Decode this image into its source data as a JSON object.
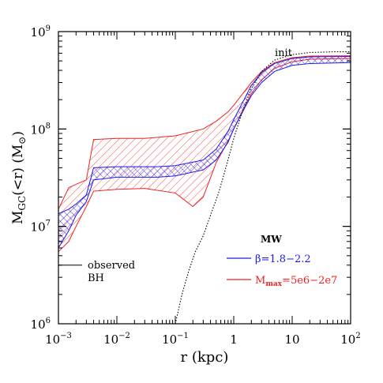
{
  "chart_data": {
    "type": "line",
    "title": "",
    "xlabel": "r (kpc)",
    "ylabel": "M_GC(<r) (M_⊙)",
    "xscale": "log",
    "yscale": "log",
    "xlim": [
      0.001,
      100
    ],
    "ylim": [
      1000000,
      1000000000
    ],
    "grid": false,
    "x_ticks": [
      {
        "value": 0.001,
        "base": "10",
        "exp": "−3"
      },
      {
        "value": 0.01,
        "base": "10",
        "exp": "−2"
      },
      {
        "value": 0.1,
        "base": "10",
        "exp": "−1"
      },
      {
        "value": 1,
        "base": "1",
        "exp": ""
      },
      {
        "value": 10,
        "base": "10",
        "exp": ""
      },
      {
        "value": 100,
        "base": "10",
        "exp": "2"
      }
    ],
    "y_ticks": [
      {
        "value": 1000000,
        "base": "10",
        "exp": "6"
      },
      {
        "value": 10000000,
        "base": "10",
        "exp": "7"
      },
      {
        "value": 100000000,
        "base": "10",
        "exp": "8"
      },
      {
        "value": 1000000000,
        "base": "10",
        "exp": "9"
      }
    ],
    "colors": {
      "blue": "#1a1aee",
      "red": "#ee2222",
      "black": "#000000"
    },
    "legend": {
      "title": "MW",
      "placement": "bottom-right",
      "entries": [
        {
          "label": "β=1.8−2.2",
          "color": "#1a1aee"
        },
        {
          "label_main": "M",
          "label_sub": "max",
          "label_rest": "=5e6−2e7",
          "color": "#ee2222"
        }
      ]
    },
    "annotations": {
      "init": "init",
      "observed_line1": "observed",
      "observed_line2": "BH",
      "observed_bh_mass": 4000000
    },
    "series": [
      {
        "name": "init",
        "style": "dotted",
        "color": "#000000",
        "points": [
          [
            0.1,
            1000000
          ],
          [
            0.13,
            2000000
          ],
          [
            0.17,
            3500000
          ],
          [
            0.22,
            5500000
          ],
          [
            0.3,
            8000000
          ],
          [
            0.4,
            13000000
          ],
          [
            0.55,
            22000000
          ],
          [
            0.75,
            42000000
          ],
          [
            1.0,
            80000000
          ],
          [
            1.4,
            150000000
          ],
          [
            2.0,
            260000000
          ],
          [
            3.0,
            390000000
          ],
          [
            5.0,
            510000000
          ],
          [
            10,
            580000000
          ],
          [
            20,
            610000000
          ],
          [
            50,
            620000000
          ],
          [
            100,
            620000000
          ]
        ]
      }
    ],
    "bands": [
      {
        "name": "β=1.8−2.2",
        "color": "#1a1aee",
        "hatch": "cross",
        "upper": [
          [
            0.001,
            13500000
          ],
          [
            0.0015,
            15000000
          ],
          [
            0.002,
            17000000
          ],
          [
            0.003,
            21000000
          ],
          [
            0.004,
            40000000
          ],
          [
            0.01,
            41000000
          ],
          [
            0.05,
            41000000
          ],
          [
            0.1,
            42000000
          ],
          [
            0.3,
            48000000
          ],
          [
            0.5,
            62000000
          ],
          [
            0.8,
            95000000
          ],
          [
            1.0,
            125000000
          ],
          [
            1.5,
            200000000
          ],
          [
            2.0,
            280000000
          ],
          [
            3.0,
            380000000
          ],
          [
            5.0,
            470000000
          ],
          [
            10,
            530000000
          ],
          [
            20,
            550000000
          ],
          [
            100,
            555000000
          ]
        ],
        "lower": [
          [
            0.001,
            6000000
          ],
          [
            0.0015,
            9000000
          ],
          [
            0.002,
            13000000
          ],
          [
            0.003,
            18000000
          ],
          [
            0.004,
            30000000
          ],
          [
            0.01,
            32000000
          ],
          [
            0.05,
            32000000
          ],
          [
            0.1,
            33000000
          ],
          [
            0.3,
            38000000
          ],
          [
            0.5,
            48000000
          ],
          [
            0.8,
            73000000
          ],
          [
            1.0,
            100000000
          ],
          [
            1.5,
            160000000
          ],
          [
            2.0,
            220000000
          ],
          [
            3.0,
            300000000
          ],
          [
            5.0,
            390000000
          ],
          [
            10,
            450000000
          ],
          [
            20,
            470000000
          ],
          [
            100,
            480000000
          ]
        ]
      },
      {
        "name": "M_max=5e6−2e7",
        "color": "#ee2222",
        "hatch": "diagonal",
        "upper": [
          [
            0.001,
            15000000
          ],
          [
            0.0015,
            25000000
          ],
          [
            0.002,
            27000000
          ],
          [
            0.003,
            30000000
          ],
          [
            0.004,
            78000000
          ],
          [
            0.01,
            80000000
          ],
          [
            0.03,
            80000000
          ],
          [
            0.1,
            85000000
          ],
          [
            0.3,
            100000000
          ],
          [
            0.5,
            120000000
          ],
          [
            0.8,
            150000000
          ],
          [
            1.0,
            175000000
          ],
          [
            1.5,
            240000000
          ],
          [
            2.0,
            300000000
          ],
          [
            3.0,
            390000000
          ],
          [
            5.0,
            480000000
          ],
          [
            10,
            540000000
          ],
          [
            20,
            560000000
          ],
          [
            100,
            565000000
          ]
        ],
        "lower": [
          [
            0.001,
            5500000
          ],
          [
            0.0015,
            7000000
          ],
          [
            0.002,
            10000000
          ],
          [
            0.003,
            16000000
          ],
          [
            0.004,
            23000000
          ],
          [
            0.01,
            24000000
          ],
          [
            0.03,
            24500000
          ],
          [
            0.1,
            22000000
          ],
          [
            0.2,
            16000000
          ],
          [
            0.3,
            20000000
          ],
          [
            0.5,
            45000000
          ],
          [
            0.8,
            75000000
          ],
          [
            1.0,
            100000000
          ],
          [
            1.5,
            165000000
          ],
          [
            2.0,
            230000000
          ],
          [
            3.0,
            320000000
          ],
          [
            5.0,
            420000000
          ],
          [
            10,
            490000000
          ],
          [
            20,
            520000000
          ],
          [
            100,
            530000000
          ]
        ]
      }
    ]
  }
}
